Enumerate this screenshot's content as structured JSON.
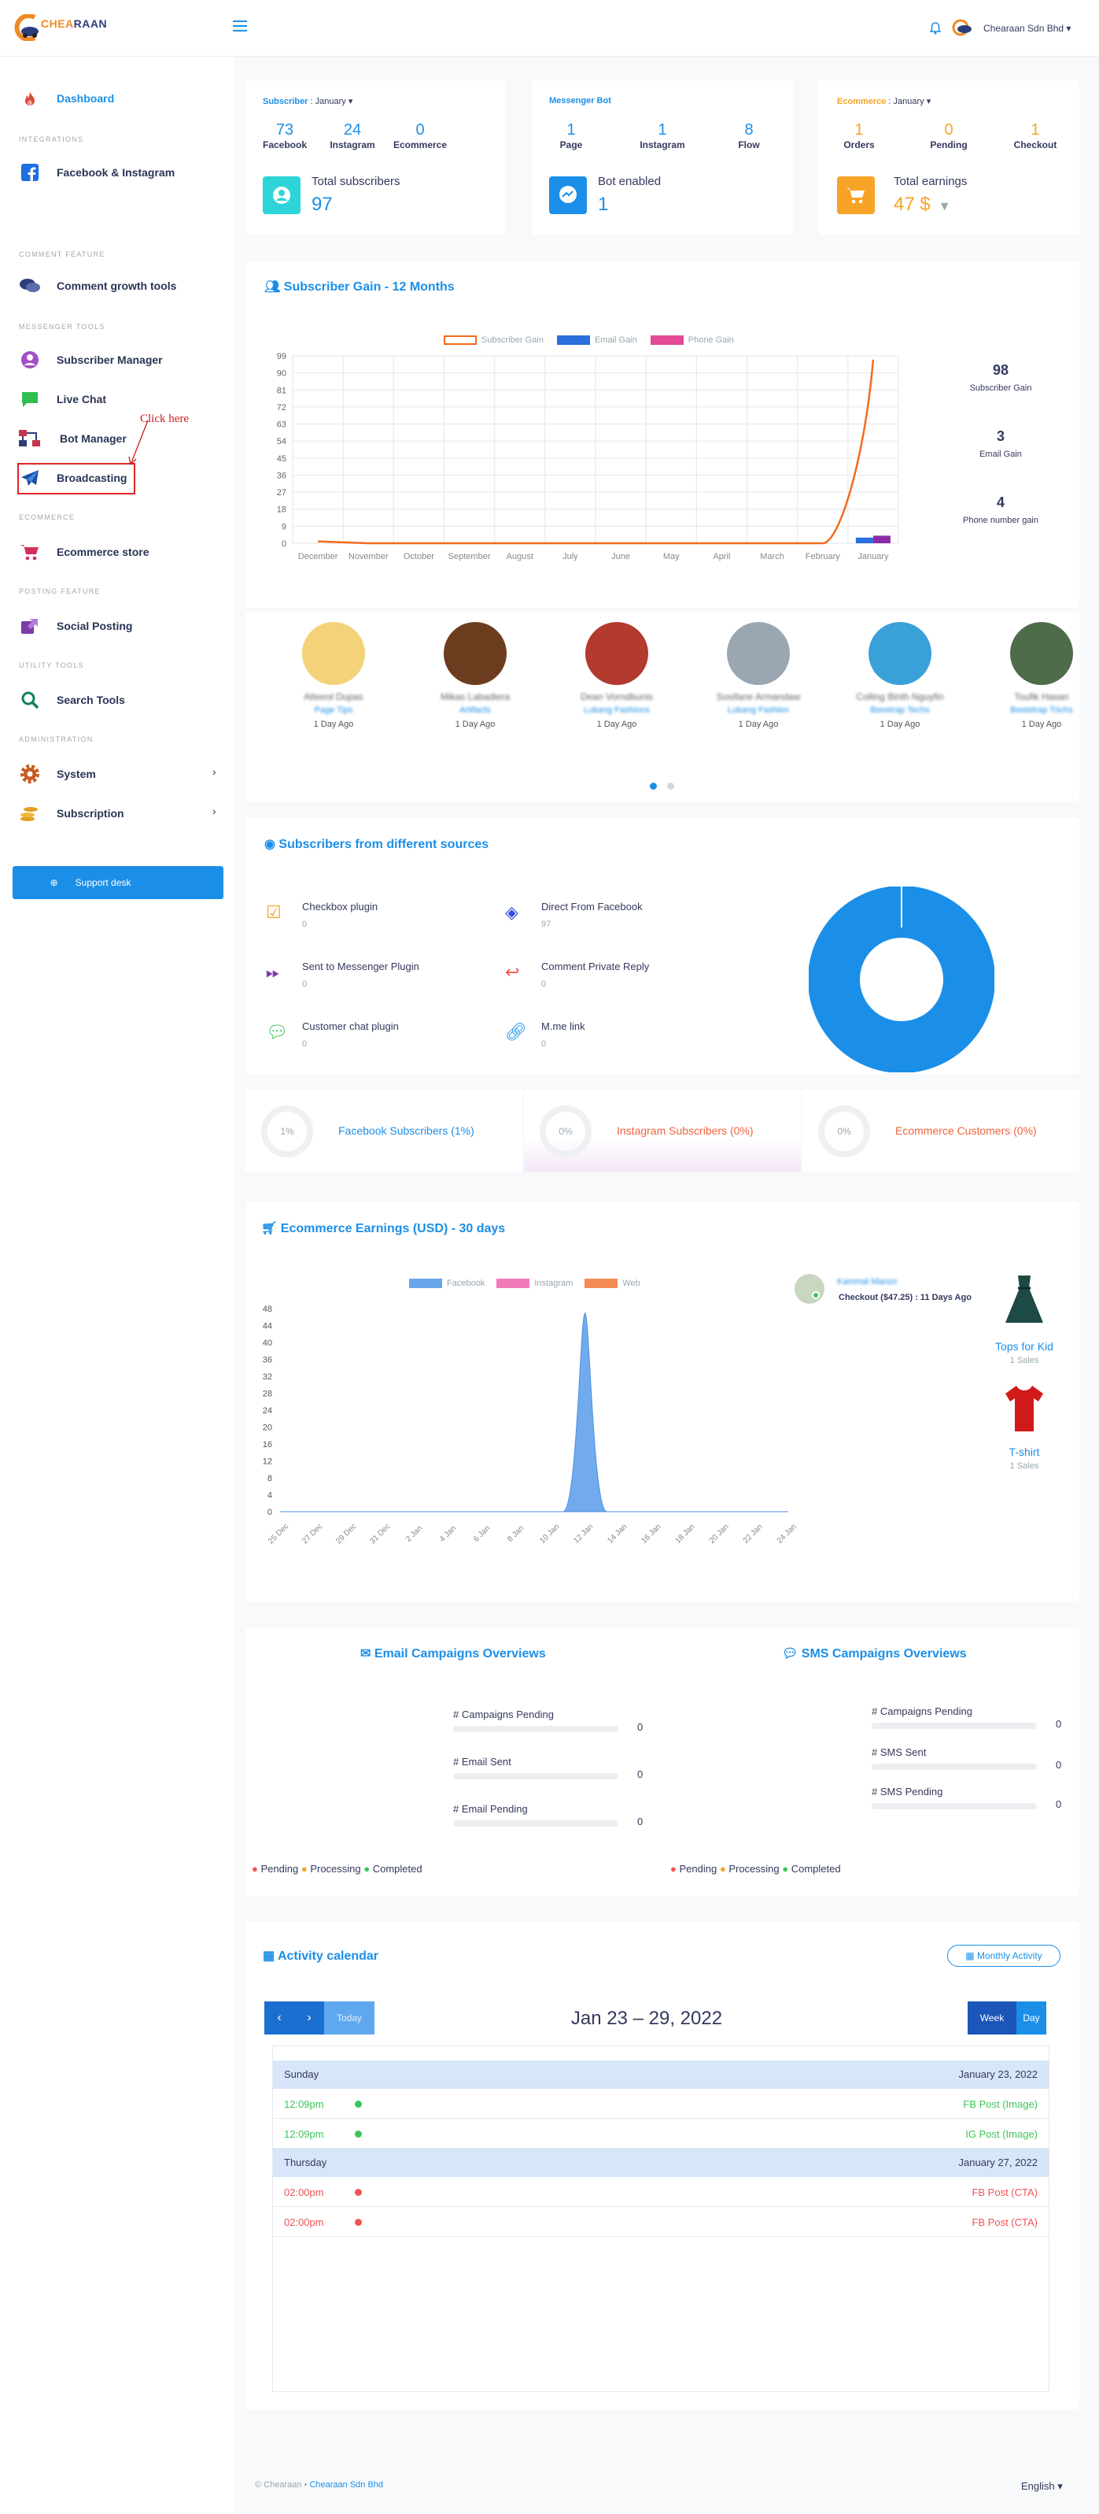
{
  "topbar": {
    "logo_text_a": "CHEA",
    "logo_text_b": "RAAN",
    "account_name": "Chearaan Sdn Bhd"
  },
  "sidebar": {
    "dashboard": "Dashboard",
    "sec_integrations": "INTEGRATIONS",
    "facebook_instagram": "Facebook & Instagram",
    "sec_comment": "COMMENT FEATURE",
    "comment_growth": "Comment growth tools",
    "sec_messenger": "MESSENGER TOOLS",
    "subscriber_manager": "Subscriber Manager",
    "live_chat": "Live Chat",
    "bot_manager": "Bot Manager",
    "broadcasting": "Broadcasting",
    "click_here": "Click here",
    "sec_ecommerce": "ECOMMERCE",
    "ecommerce_store": "Ecommerce store",
    "sec_posting": "POSTING FEATURE",
    "social_posting": "Social Posting",
    "sec_utility": "UTILITY TOOLS",
    "search_tools": "Search Tools",
    "sec_admin": "ADMINISTRATION",
    "system": "System",
    "subscription": "Subscription",
    "support_desk": "Support desk"
  },
  "summary": {
    "subscriber": {
      "title": "Subscriber",
      "period": "January",
      "stats": [
        {
          "value": "73",
          "label": "Facebook"
        },
        {
          "value": "24",
          "label": "Instagram"
        },
        {
          "value": "0",
          "label": "Ecommerce"
        }
      ],
      "total_label": "Total subscribers",
      "total_value": "97"
    },
    "bot": {
      "title": "Messenger Bot",
      "stats": [
        {
          "value": "1",
          "label": "Page"
        },
        {
          "value": "1",
          "label": "Instagram"
        },
        {
          "value": "8",
          "label": "Flow"
        }
      ],
      "total_label": "Bot enabled",
      "total_value": "1"
    },
    "ecommerce": {
      "title": "Ecommerce",
      "period": "January",
      "stats": [
        {
          "value": "1",
          "label": "Orders"
        },
        {
          "value": "0",
          "label": "Pending"
        },
        {
          "value": "1",
          "label": "Checkout"
        }
      ],
      "total_label": "Total earnings",
      "total_value": "47 $"
    },
    "colors": {
      "blue": "#1b8fe8",
      "orange": "#f7a325"
    }
  },
  "gain": {
    "title": "Subscriber Gain - 12 Months",
    "legend": [
      "Subscriber Gain",
      "Email Gain",
      "Phone Gain"
    ],
    "side": [
      {
        "value": "98",
        "label": "Subscriber Gain"
      },
      {
        "value": "3",
        "label": "Email Gain"
      },
      {
        "value": "4",
        "label": "Phone number gain"
      }
    ]
  },
  "chart_data": [
    {
      "type": "line",
      "title": "Subscriber Gain - 12 Months",
      "categories": [
        "December",
        "November",
        "October",
        "September",
        "August",
        "July",
        "June",
        "May",
        "April",
        "March",
        "February",
        "January"
      ],
      "yticks": [
        "0",
        "9",
        "18",
        "27",
        "36",
        "45",
        "54",
        "63",
        "72",
        "81",
        "90",
        "99"
      ],
      "ylim": [
        0,
        99
      ],
      "series": [
        {
          "name": "Subscriber Gain",
          "type": "line",
          "color": "#f26b1d",
          "values": [
            1,
            0,
            0,
            0,
            0,
            0,
            0,
            0,
            0,
            0,
            0,
            97
          ]
        },
        {
          "name": "Email Gain",
          "type": "bar",
          "color": "#2a6fdb",
          "values": [
            0,
            0,
            0,
            0,
            0,
            0,
            0,
            0,
            0,
            0,
            0,
            3
          ]
        },
        {
          "name": "Phone Gain",
          "type": "bar",
          "color": "#8e2aa8",
          "values": [
            0,
            0,
            0,
            0,
            0,
            0,
            0,
            0,
            0,
            0,
            0,
            4
          ]
        }
      ],
      "grid": true,
      "legend": "top"
    },
    {
      "type": "area",
      "title": "Ecommerce Earnings (USD) - 30 days",
      "categories": [
        "25 Dec",
        "27 Dec",
        "29 Dec",
        "31 Dec",
        "2 Jan",
        "4 Jan",
        "6 Jan",
        "8 Jan",
        "10 Jan",
        "12 Jan",
        "14 Jan",
        "16 Jan",
        "18 Jan",
        "20 Jan",
        "22 Jan",
        "24 Jan"
      ],
      "yticks": [
        "0",
        "4",
        "8",
        "12",
        "16",
        "20",
        "24",
        "28",
        "32",
        "36",
        "40",
        "44",
        "48"
      ],
      "ylim": [
        0,
        48
      ],
      "series": [
        {
          "name": "Facebook",
          "color": "#6aa6ec",
          "values": [
            0,
            0,
            0,
            0,
            0,
            0,
            0,
            0,
            0,
            47,
            0,
            0,
            0,
            0,
            0,
            0
          ]
        },
        {
          "name": "Instagram",
          "color": "#f07ab8",
          "values": [
            0,
            0,
            0,
            0,
            0,
            0,
            0,
            0,
            0,
            0,
            0,
            0,
            0,
            0,
            0,
            0
          ]
        },
        {
          "name": "Web",
          "color": "#f58a55",
          "values": [
            0,
            0,
            0,
            0,
            0,
            0,
            0,
            0,
            0,
            0,
            0,
            0,
            0,
            0,
            0,
            0
          ]
        }
      ],
      "legend": "top"
    },
    {
      "type": "pie",
      "title": "Subscribers from different sources",
      "categories": [
        "Direct From Facebook"
      ],
      "values": [
        97
      ],
      "color": "#1b8fe8"
    }
  ],
  "recent": [
    {
      "name": "Atteeol Dupas",
      "page": "Page Tips",
      "time": "1 Day Ago"
    },
    {
      "name": "Mikas Labadiera",
      "page": "Artifacts",
      "time": "1 Day Ago"
    },
    {
      "name": "Dean Vorndbunis",
      "page": "Lukang Fashions",
      "time": "1 Day Ago"
    },
    {
      "name": "Sosifane Armandaw",
      "page": "Lukang Fashion",
      "time": "1 Day Ago"
    },
    {
      "name": "Colling Binth Nguyfin",
      "page": "Boostrap Techs",
      "time": "1 Day Ago"
    },
    {
      "name": "Toufik Hasan",
      "page": "Bootstrap Trichs",
      "time": "1 Day Ago"
    }
  ],
  "sources": {
    "title": "Subscribers from different sources",
    "items": [
      {
        "label": "Checkbox plugin",
        "value": "0"
      },
      {
        "label": "Direct From Facebook",
        "value": "97"
      },
      {
        "label": "Sent to Messenger Plugin",
        "value": "0"
      },
      {
        "label": "Comment Private Reply",
        "value": "0"
      },
      {
        "label": "Customer chat plugin",
        "value": "0"
      },
      {
        "label": "M.me link",
        "value": "0"
      }
    ]
  },
  "percent_tiles": [
    {
      "pct": "1%",
      "label": "Facebook Subscribers (1%)",
      "color": "#1b8fe8"
    },
    {
      "pct": "0%",
      "label": "Instagram Subscribers (0%)",
      "color": "#f0643c"
    },
    {
      "pct": "0%",
      "label": "Ecommerce Customers (0%)",
      "color": "#f0643c"
    }
  ],
  "earnings": {
    "title": "Ecommerce Earnings (USD) - 30 days",
    "buyer_name": "Kammal Manzo",
    "checkout": "Checkout ($47.25) : 11 Days Ago",
    "products": [
      {
        "name": "Tops for Kid",
        "sales": "1 Sales"
      },
      {
        "name": "T-shirt",
        "sales": "1 Sales"
      }
    ]
  },
  "campaigns": {
    "email_title": "Email Campaigns Overviews",
    "sms_title": "SMS Campaigns Overviews",
    "email_rows": [
      {
        "label": "# Campaigns Pending",
        "value": "0"
      },
      {
        "label": "# Email Sent",
        "value": "0"
      },
      {
        "label": "# Email Pending",
        "value": "0"
      }
    ],
    "sms_rows": [
      {
        "label": "# Campaigns Pending",
        "value": "0"
      },
      {
        "label": "# SMS Sent",
        "value": "0"
      },
      {
        "label": "# SMS Pending",
        "value": "0"
      }
    ],
    "legend": [
      "Pending",
      "Processing",
      "Completed"
    ]
  },
  "calendar": {
    "title": "Activity calendar",
    "monthly": "Monthly Activity",
    "today": "Today",
    "range": "Jan 23 – 29, 2022",
    "week": "Week",
    "day": "Day",
    "groups": [
      {
        "day": "Sunday",
        "date": "January 23, 2022",
        "events": [
          {
            "time": "12:09pm",
            "title": "FB Post (Image)",
            "color": "#3cc65a"
          },
          {
            "time": "12:09pm",
            "title": "IG Post (Image)",
            "color": "#3cc65a"
          }
        ]
      },
      {
        "day": "Thursday",
        "date": "January 27, 2022",
        "events": [
          {
            "time": "02:00pm",
            "title": "FB Post (CTA)",
            "color": "#ef5353"
          },
          {
            "time": "02:00pm",
            "title": "FB Post (CTA)",
            "color": "#ef5353"
          }
        ]
      }
    ]
  },
  "footer": {
    "copy": "© Chearaan",
    "link": "Chearaan Sdn Bhd",
    "language": "English"
  }
}
